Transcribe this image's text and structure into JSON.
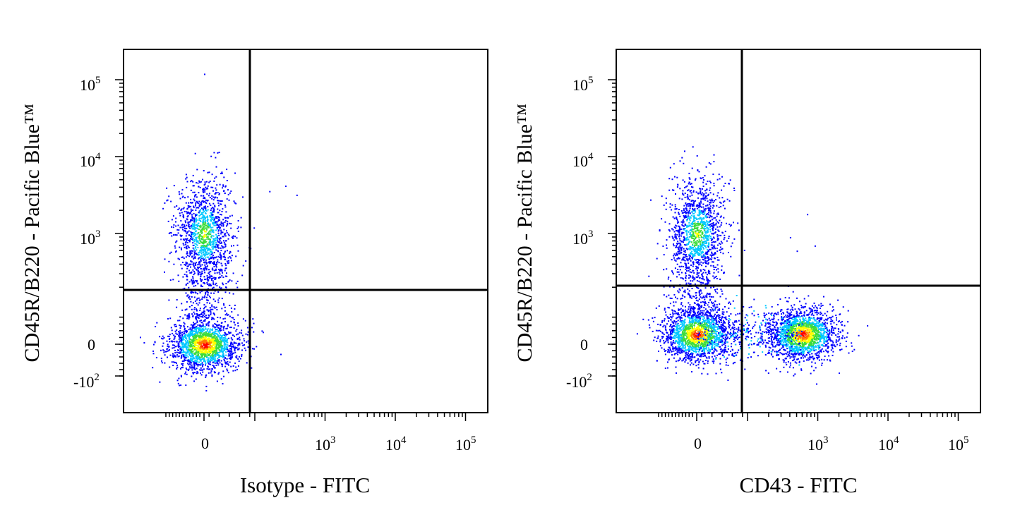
{
  "chart_data": [
    {
      "type": "scatter",
      "style": "flow-cytometry-density-dot-plot",
      "xlabel": "Isotype - FITC",
      "ylabel": "CD45R/B220 - Pacific Blue™",
      "x_scale": "biexponential (logicle)",
      "y_scale": "biexponential (logicle)",
      "x_tick_labels": [
        {
          "base": "0",
          "exp": ""
        },
        {
          "base": "10",
          "exp": "3"
        },
        {
          "base": "10",
          "exp": "4"
        },
        {
          "base": "10",
          "exp": "5"
        }
      ],
      "y_tick_labels": [
        {
          "base": "-10",
          "exp": "2"
        },
        {
          "base": "0",
          "exp": ""
        },
        {
          "base": "10",
          "exp": "3"
        },
        {
          "base": "10",
          "exp": "4"
        },
        {
          "base": "10",
          "exp": "5"
        }
      ],
      "quadrant_gate": {
        "x": 170,
        "y": 220
      },
      "populations": [
        {
          "name_hint": "upper-left cluster",
          "x_center": 0,
          "y_center": 1000,
          "density": "medium"
        },
        {
          "name_hint": "lower-left cluster",
          "x_center": 0,
          "y_center": 0,
          "density": "high"
        }
      ],
      "outliers": [
        {
          "x": 0,
          "y": 120000
        },
        {
          "x": 270,
          "y": 4200
        },
        {
          "x": 390,
          "y": 3200
        },
        {
          "x": 330,
          "y": 190
        },
        {
          "x": 230,
          "y": -30
        }
      ],
      "grid": false,
      "legend": "none"
    },
    {
      "type": "scatter",
      "style": "flow-cytometry-density-dot-plot",
      "xlabel": "CD43 - FITC",
      "ylabel": "CD45R/B220 - Pacific Blue™",
      "x_scale": "biexponential (logicle)",
      "y_scale": "biexponential (logicle)",
      "x_tick_labels": [
        {
          "base": "0",
          "exp": ""
        },
        {
          "base": "10",
          "exp": "3"
        },
        {
          "base": "10",
          "exp": "4"
        },
        {
          "base": "10",
          "exp": "5"
        }
      ],
      "y_tick_labels": [
        {
          "base": "-10",
          "exp": "2"
        },
        {
          "base": "0",
          "exp": ""
        },
        {
          "base": "10",
          "exp": "3"
        },
        {
          "base": "10",
          "exp": "4"
        },
        {
          "base": "10",
          "exp": "5"
        }
      ],
      "quadrant_gate": {
        "x": 160,
        "y": 240
      },
      "populations": [
        {
          "name_hint": "upper-left cluster",
          "x_center": 0,
          "y_center": 1000,
          "density": "medium"
        },
        {
          "name_hint": "lower-left cluster",
          "x_center": 0,
          "y_center": 30,
          "density": "high"
        },
        {
          "name_hint": "lower-right cluster",
          "x_center": 600,
          "y_center": 30,
          "density": "high"
        }
      ],
      "outliers": [
        {
          "x": -30,
          "y": 12000
        },
        {
          "x": 400,
          "y": 900
        },
        {
          "x": 700,
          "y": 1800
        },
        {
          "x": 900,
          "y": 700
        },
        {
          "x": 500,
          "y": 600
        }
      ],
      "grid": false,
      "legend": "none"
    }
  ],
  "colors": {
    "axis": "#000000",
    "density_low": "#0000ff",
    "density_mid_low": "#00c8ff",
    "density_mid": "#3cdc3c",
    "density_mid_high": "#ffff00",
    "density_high": "#ff0000"
  }
}
